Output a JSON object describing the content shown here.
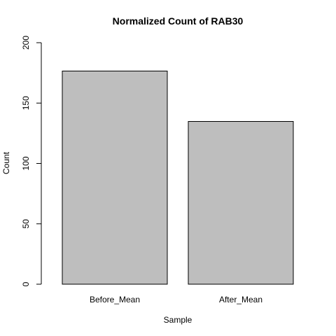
{
  "chart_data": {
    "type": "bar",
    "title": "Normalized Count of RAB30",
    "xlabel": "Sample",
    "ylabel": "Count",
    "categories": [
      "Before_Mean",
      "After_Mean"
    ],
    "values": [
      176.5,
      134.8
    ],
    "ylim": [
      0,
      200
    ],
    "yticks": [
      0,
      50,
      100,
      150,
      200
    ],
    "ytick_labels": [
      "0",
      "50",
      "100",
      "150",
      "200"
    ],
    "grid": false,
    "bar_color": "#bebebe",
    "bar_border_color": "#000000"
  }
}
